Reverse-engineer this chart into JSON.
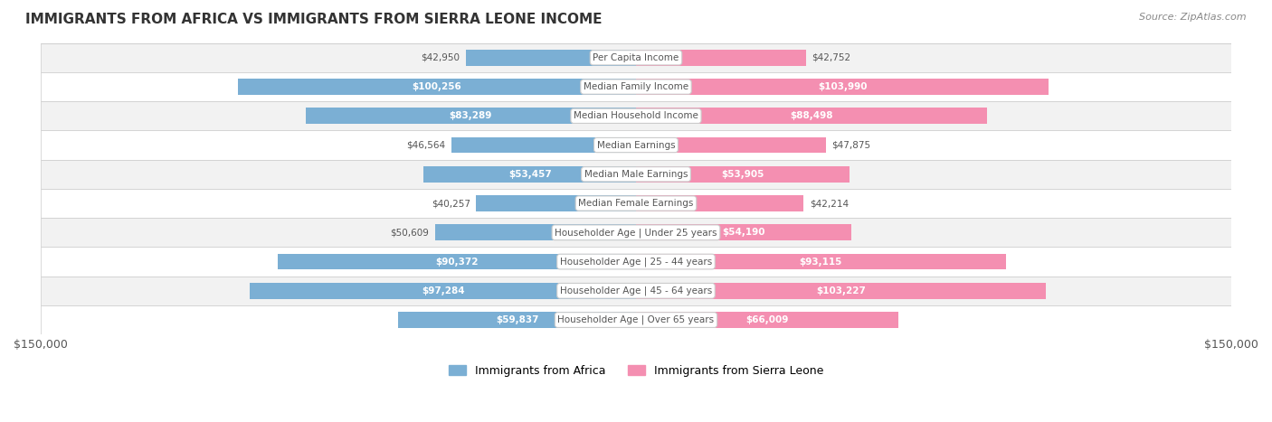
{
  "title": "IMMIGRANTS FROM AFRICA VS IMMIGRANTS FROM SIERRA LEONE INCOME",
  "source": "Source: ZipAtlas.com",
  "categories": [
    "Per Capita Income",
    "Median Family Income",
    "Median Household Income",
    "Median Earnings",
    "Median Male Earnings",
    "Median Female Earnings",
    "Householder Age | Under 25 years",
    "Householder Age | 25 - 44 years",
    "Householder Age | 45 - 64 years",
    "Householder Age | Over 65 years"
  ],
  "africa_values": [
    42950,
    100256,
    83289,
    46564,
    53457,
    40257,
    50609,
    90372,
    97284,
    59837
  ],
  "sierra_leone_values": [
    42752,
    103990,
    88498,
    47875,
    53905,
    42214,
    54190,
    93115,
    103227,
    66009
  ],
  "africa_labels": [
    "$42,950",
    "$100,256",
    "$83,289",
    "$46,564",
    "$53,457",
    "$40,257",
    "$50,609",
    "$90,372",
    "$97,284",
    "$59,837"
  ],
  "sierra_leone_labels": [
    "$42,752",
    "$103,990",
    "$88,498",
    "$47,875",
    "$53,905",
    "$42,214",
    "$54,190",
    "$93,115",
    "$103,227",
    "$66,009"
  ],
  "africa_color": "#7bafd4",
  "africa_color_dark": "#5b9bbf",
  "sierra_leone_color": "#f48fb1",
  "sierra_leone_color_dark": "#e06090",
  "max_value": 150000,
  "bar_height": 0.55,
  "background_color": "#f5f5f5",
  "row_bg_light": "#f0f0f0",
  "row_bg_dark": "#e8e8e8",
  "legend_africa": "Immigrants from Africa",
  "legend_sierra_leone": "Immigrants from Sierra Leone"
}
